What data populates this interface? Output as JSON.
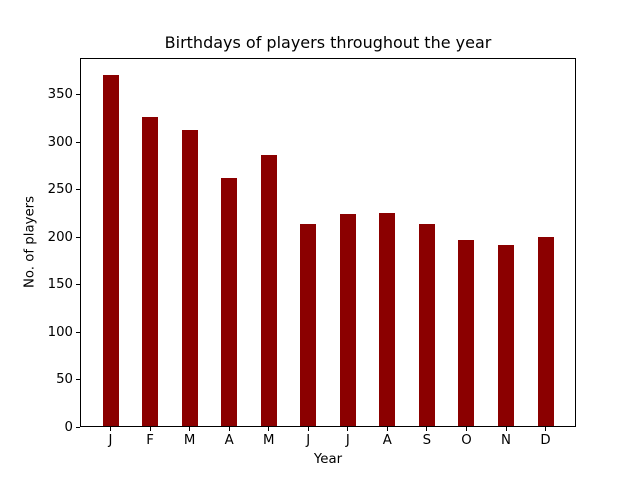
{
  "figure": {
    "background": "#ffffff",
    "text_color": "#000000"
  },
  "chart_data": {
    "type": "bar",
    "title": "Birthdays of players throughout the year",
    "xlabel": "Year",
    "ylabel": "No. of players",
    "categories": [
      "J",
      "F",
      "M",
      "A",
      "M",
      "J",
      "J",
      "A",
      "S",
      "O",
      "N",
      "D"
    ],
    "values": [
      370,
      325,
      312,
      261,
      285,
      213,
      223,
      224,
      213,
      196,
      191,
      199
    ],
    "bar_color": "#8B0000",
    "yticks": [
      0,
      50,
      100,
      150,
      200,
      250,
      300,
      350
    ],
    "ylim": [
      0,
      388.5
    ],
    "grid": false,
    "legend": "none"
  }
}
